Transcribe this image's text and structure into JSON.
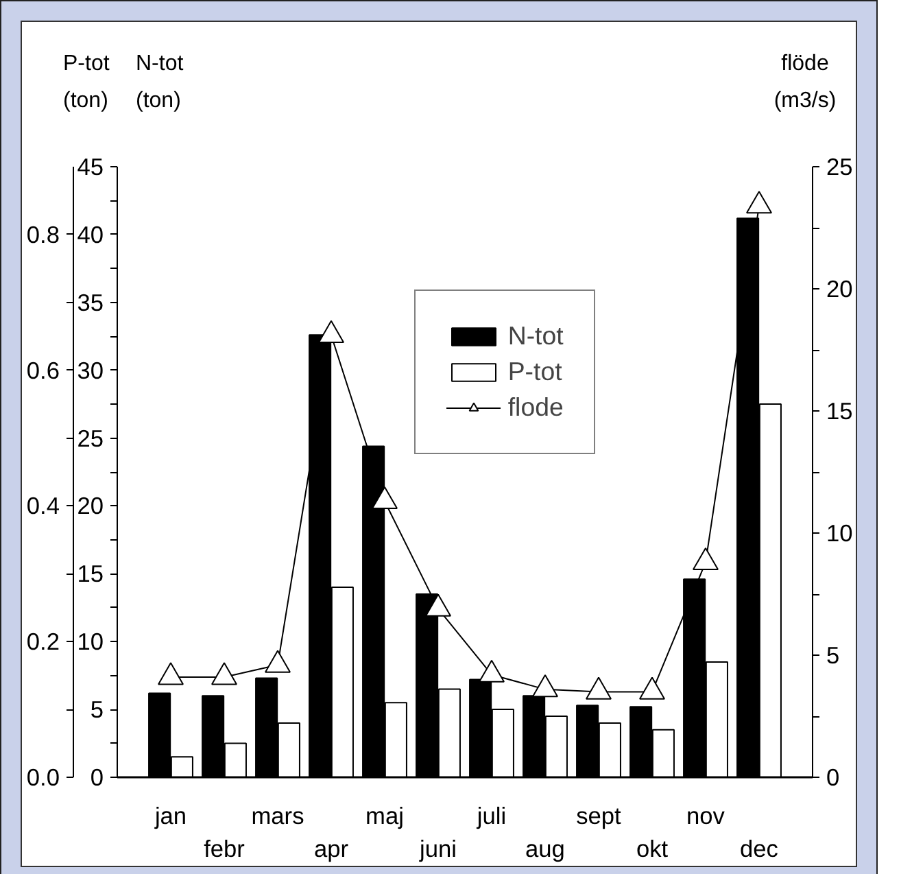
{
  "chart_data": {
    "type": "bar",
    "categories": [
      "jan",
      "febr",
      "mars",
      "apr",
      "maj",
      "juni",
      "juli",
      "aug",
      "sept",
      "okt",
      "nov",
      "dec"
    ],
    "series": [
      {
        "name": "N-tot",
        "color": "#000000",
        "values": [
          6.2,
          6.0,
          7.3,
          32.6,
          24.4,
          13.5,
          7.2,
          6.0,
          5.3,
          5.2,
          14.6,
          41.2
        ]
      },
      {
        "name": "P-tot",
        "color": "#ffffff",
        "axis": "y3",
        "values": [
          0.03,
          0.05,
          0.08,
          0.28,
          0.11,
          0.13,
          0.1,
          0.09,
          0.08,
          0.07,
          0.17,
          0.55
        ]
      },
      {
        "name": "flode",
        "type": "line",
        "color": "#000000",
        "axis": "y2",
        "marker": "triangle",
        "values": [
          4.1,
          4.1,
          4.6,
          18.1,
          11.3,
          6.9,
          4.2,
          3.6,
          3.5,
          3.5,
          8.8,
          23.4
        ]
      }
    ],
    "ylabel": "N-tot\n(ton)",
    "y3label": "P-tot\n(ton)",
    "y2label": "flöde\n(m3/s)",
    "ylim": [
      0,
      45
    ],
    "yticks": [
      0,
      {
        "value": 2.5,
        "label": null
      },
      5,
      {
        "value": 7.5,
        "label": null
      },
      10,
      {
        "value": 12.5,
        "label": null
      },
      15,
      {
        "value": 17.5,
        "label": null
      },
      20,
      {
        "value": 22.5,
        "label": null
      },
      25,
      {
        "value": 27.5,
        "label": null
      },
      30,
      {
        "value": 32.5,
        "label": null
      },
      35,
      {
        "value": 37.5,
        "label": null
      },
      40,
      {
        "value": 42.5,
        "label": null
      },
      45
    ],
    "y3lim": [
      0,
      0.9
    ],
    "y3ticks": [
      {
        "value": 0,
        "label": "0.0"
      },
      {
        "value": 0.1,
        "label": null
      },
      0.2,
      {
        "value": 0.3,
        "label": null
      },
      0.4,
      {
        "value": 0.5,
        "label": null
      },
      0.6,
      {
        "value": 0.7,
        "label": null
      },
      0.8
    ],
    "y2lim": [
      0,
      25
    ],
    "y2ticks": [
      0,
      {
        "value": 2.5,
        "label": null
      },
      5,
      {
        "value": 7.5,
        "label": null
      },
      10,
      {
        "value": 12.5,
        "label": null
      },
      15,
      {
        "value": 17.5,
        "label": null
      },
      20,
      {
        "value": 22.5,
        "label": null
      },
      25
    ],
    "grid": false,
    "legend": "top right"
  }
}
